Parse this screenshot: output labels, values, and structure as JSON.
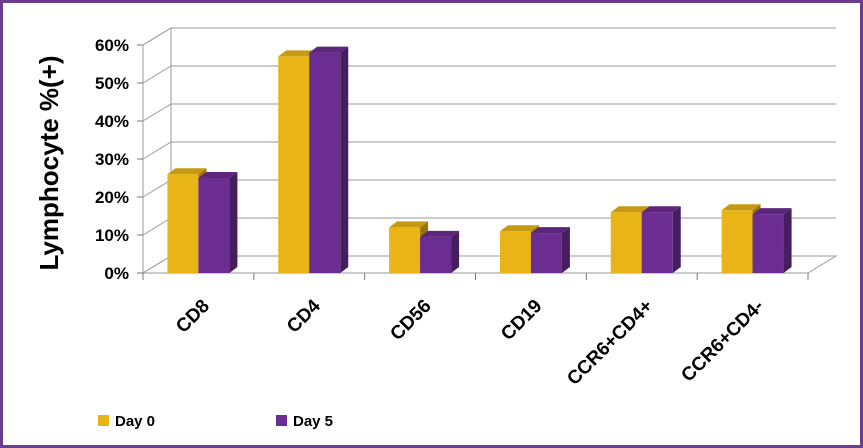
{
  "chart_data": {
    "type": "bar",
    "title": "",
    "xlabel": "",
    "ylabel": "Lymphocyte %(+)",
    "categories": [
      "CD8",
      "CD4",
      "CD56",
      "CD19",
      "CCR6+CD4+",
      "CCR6+CD4-"
    ],
    "series": [
      {
        "name": "Day 0",
        "color": "#e8b416",
        "values": [
          26,
          57,
          12,
          11,
          16,
          16.5
        ]
      },
      {
        "name": "Day 5",
        "color": "#6b2d91",
        "values": [
          25,
          58,
          9.5,
          10.5,
          16,
          15.5
        ]
      }
    ],
    "ylim": [
      0,
      60
    ],
    "yticks": [
      0,
      10,
      20,
      30,
      40,
      50,
      60
    ],
    "ytick_labels": [
      "0%",
      "10%",
      "20%",
      "30%",
      "40%",
      "50%",
      "60%"
    ],
    "grid": true,
    "three_d": true,
    "legend_position": "bottom-left"
  }
}
